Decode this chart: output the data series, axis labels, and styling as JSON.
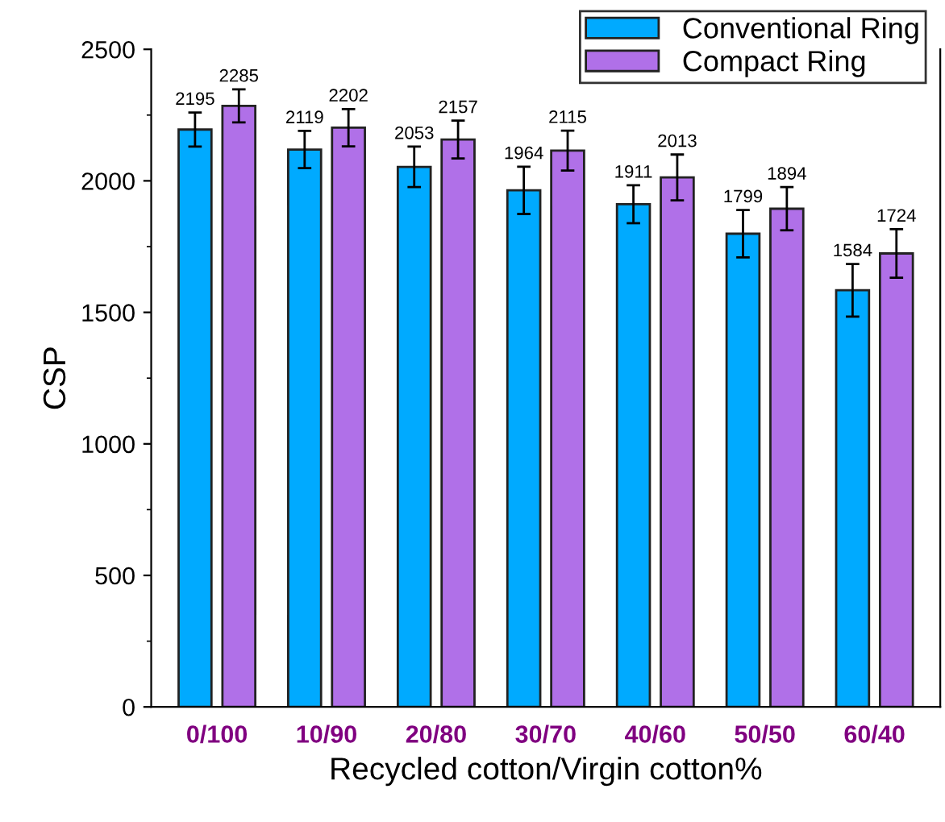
{
  "chart_data": {
    "type": "bar",
    "xlabel": "Recycled cotton/Virgin cotton%",
    "ylabel": "CSP",
    "categories": [
      "0/100",
      "10/90",
      "20/80",
      "30/70",
      "40/60",
      "50/50",
      "60/40"
    ],
    "series": [
      {
        "name": "Conventional Ring",
        "color": "#00aaff",
        "values": [
          2195,
          2119,
          2053,
          1964,
          1911,
          1799,
          1584
        ],
        "errors": [
          65,
          71,
          77,
          90,
          72,
          90,
          100
        ]
      },
      {
        "name": "Compact Ring",
        "color": "#b070e8",
        "values": [
          2285,
          2202,
          2157,
          2115,
          2013,
          1894,
          1724
        ],
        "errors": [
          63,
          71,
          72,
          76,
          87,
          82,
          92
        ]
      }
    ],
    "ylim": [
      0,
      2500
    ],
    "yticks": [
      0,
      500,
      1000,
      1500,
      2000,
      2500
    ],
    "data_labels": true,
    "legend": "top right",
    "grid": false
  }
}
